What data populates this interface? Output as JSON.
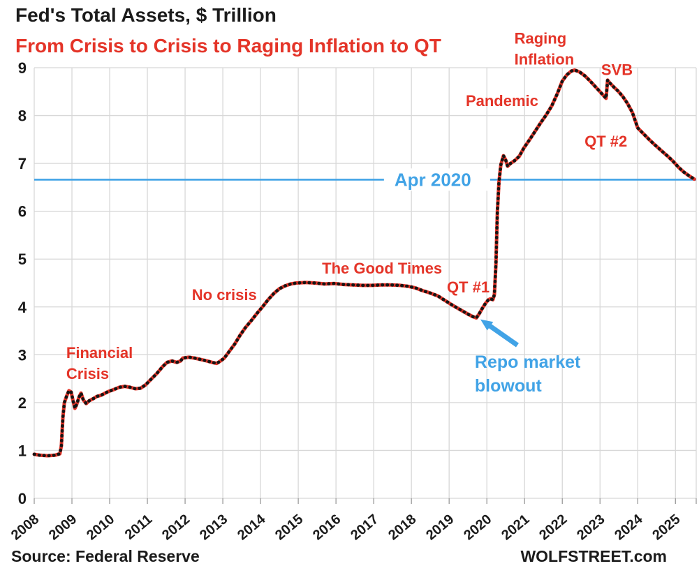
{
  "chart": {
    "title": "Fed's Total Assets, $ Trillion",
    "subtitle": "From Crisis to Crisis to Raging Inflation to QT"
  },
  "footer": {
    "source": "Source: Federal Reserve",
    "site": "WOLFSTREET.com"
  },
  "chart_data": {
    "type": "line",
    "title": "Fed's Total Assets, $ Trillion",
    "subtitle": "From Crisis to Crisis to Raging Inflation to QT",
    "xlabel": "",
    "ylabel": "$ Trillion",
    "xlim": [
      2008,
      2025.55
    ],
    "ylim": [
      0,
      9
    ],
    "grid": true,
    "x_ticks": [
      2008,
      2009,
      2010,
      2011,
      2012,
      2013,
      2014,
      2015,
      2016,
      2017,
      2018,
      2019,
      2020,
      2021,
      2022,
      2023,
      2024,
      2025
    ],
    "y_ticks": [
      0,
      1,
      2,
      3,
      4,
      5,
      6,
      7,
      8,
      9
    ],
    "colors": {
      "line_red": "#e43428",
      "marker_black": "#151515",
      "annotation_red": "#e43428",
      "annotation_blue": "#41a3e6",
      "grid": "#d8d8d8",
      "axis_text": "#1b1b1b"
    },
    "series": [
      {
        "name": "Fed total assets ($ trillion)",
        "points": [
          [
            2008.0,
            0.92
          ],
          [
            2008.15,
            0.9
          ],
          [
            2008.35,
            0.89
          ],
          [
            2008.55,
            0.9
          ],
          [
            2008.68,
            0.93
          ],
          [
            2008.72,
            1.1
          ],
          [
            2008.76,
            1.7
          ],
          [
            2008.8,
            2.0
          ],
          [
            2008.86,
            2.14
          ],
          [
            2008.92,
            2.25
          ],
          [
            2008.98,
            2.22
          ],
          [
            2009.03,
            2.04
          ],
          [
            2009.08,
            1.88
          ],
          [
            2009.13,
            1.97
          ],
          [
            2009.19,
            2.12
          ],
          [
            2009.24,
            2.2
          ],
          [
            2009.3,
            2.06
          ],
          [
            2009.38,
            1.98
          ],
          [
            2009.46,
            2.04
          ],
          [
            2009.56,
            2.08
          ],
          [
            2009.66,
            2.13
          ],
          [
            2009.76,
            2.15
          ],
          [
            2009.86,
            2.19
          ],
          [
            2009.96,
            2.23
          ],
          [
            2010.1,
            2.27
          ],
          [
            2010.25,
            2.32
          ],
          [
            2010.4,
            2.34
          ],
          [
            2010.55,
            2.32
          ],
          [
            2010.68,
            2.29
          ],
          [
            2010.82,
            2.3
          ],
          [
            2010.95,
            2.37
          ],
          [
            2011.1,
            2.49
          ],
          [
            2011.25,
            2.61
          ],
          [
            2011.4,
            2.75
          ],
          [
            2011.52,
            2.84
          ],
          [
            2011.65,
            2.87
          ],
          [
            2011.78,
            2.84
          ],
          [
            2011.88,
            2.87
          ],
          [
            2011.94,
            2.93
          ],
          [
            2012.1,
            2.95
          ],
          [
            2012.25,
            2.93
          ],
          [
            2012.42,
            2.9
          ],
          [
            2012.58,
            2.87
          ],
          [
            2012.72,
            2.84
          ],
          [
            2012.84,
            2.82
          ],
          [
            2012.94,
            2.87
          ],
          [
            2013.04,
            2.93
          ],
          [
            2013.18,
            3.08
          ],
          [
            2013.32,
            3.23
          ],
          [
            2013.46,
            3.41
          ],
          [
            2013.6,
            3.57
          ],
          [
            2013.75,
            3.71
          ],
          [
            2013.9,
            3.86
          ],
          [
            2014.05,
            4.0
          ],
          [
            2014.2,
            4.15
          ],
          [
            2014.35,
            4.28
          ],
          [
            2014.5,
            4.38
          ],
          [
            2014.65,
            4.44
          ],
          [
            2014.8,
            4.48
          ],
          [
            2014.95,
            4.5
          ],
          [
            2015.2,
            4.51
          ],
          [
            2015.45,
            4.5
          ],
          [
            2015.7,
            4.48
          ],
          [
            2015.95,
            4.49
          ],
          [
            2016.2,
            4.47
          ],
          [
            2016.45,
            4.46
          ],
          [
            2016.7,
            4.45
          ],
          [
            2016.95,
            4.45
          ],
          [
            2017.2,
            4.46
          ],
          [
            2017.45,
            4.46
          ],
          [
            2017.7,
            4.45
          ],
          [
            2017.92,
            4.43
          ],
          [
            2018.1,
            4.4
          ],
          [
            2018.3,
            4.34
          ],
          [
            2018.5,
            4.29
          ],
          [
            2018.7,
            4.23
          ],
          [
            2018.9,
            4.13
          ],
          [
            2019.1,
            4.03
          ],
          [
            2019.3,
            3.94
          ],
          [
            2019.5,
            3.85
          ],
          [
            2019.62,
            3.8
          ],
          [
            2019.72,
            3.77
          ],
          [
            2019.8,
            3.86
          ],
          [
            2019.88,
            3.97
          ],
          [
            2019.96,
            4.07
          ],
          [
            2020.04,
            4.15
          ],
          [
            2020.1,
            4.17
          ],
          [
            2020.16,
            4.15
          ],
          [
            2020.2,
            4.26
          ],
          [
            2020.24,
            4.9
          ],
          [
            2020.28,
            6.0
          ],
          [
            2020.32,
            6.6
          ],
          [
            2020.37,
            6.97
          ],
          [
            2020.44,
            7.16
          ],
          [
            2020.5,
            7.07
          ],
          [
            2020.55,
            6.94
          ],
          [
            2020.63,
            7.0
          ],
          [
            2020.74,
            7.06
          ],
          [
            2020.86,
            7.15
          ],
          [
            2020.98,
            7.32
          ],
          [
            2021.12,
            7.48
          ],
          [
            2021.27,
            7.66
          ],
          [
            2021.42,
            7.84
          ],
          [
            2021.57,
            8.01
          ],
          [
            2021.72,
            8.2
          ],
          [
            2021.87,
            8.46
          ],
          [
            2022.0,
            8.72
          ],
          [
            2022.12,
            8.85
          ],
          [
            2022.24,
            8.93
          ],
          [
            2022.33,
            8.95
          ],
          [
            2022.46,
            8.91
          ],
          [
            2022.6,
            8.83
          ],
          [
            2022.74,
            8.72
          ],
          [
            2022.88,
            8.6
          ],
          [
            2023.02,
            8.48
          ],
          [
            2023.16,
            8.36
          ],
          [
            2023.2,
            8.74
          ],
          [
            2023.26,
            8.68
          ],
          [
            2023.36,
            8.6
          ],
          [
            2023.48,
            8.51
          ],
          [
            2023.6,
            8.4
          ],
          [
            2023.73,
            8.25
          ],
          [
            2023.86,
            8.06
          ],
          [
            2024.0,
            7.74
          ],
          [
            2024.15,
            7.62
          ],
          [
            2024.3,
            7.5
          ],
          [
            2024.45,
            7.39
          ],
          [
            2024.62,
            7.27
          ],
          [
            2024.78,
            7.16
          ],
          [
            2024.93,
            7.05
          ],
          [
            2025.08,
            6.92
          ],
          [
            2025.22,
            6.82
          ],
          [
            2025.36,
            6.74
          ],
          [
            2025.5,
            6.67
          ]
        ]
      }
    ],
    "reference_line": {
      "label": "Apr 2020",
      "value": 6.66,
      "label_x": 2017.55,
      "label_baseline_value": 6.53
    },
    "annotations": [
      {
        "id": "financial-crisis",
        "lines": [
          "Financial",
          "Crisis"
        ],
        "x": 2008.85,
        "y": 2.93,
        "color": "red",
        "size": 22
      },
      {
        "id": "no-crisis",
        "lines": [
          "No crisis"
        ],
        "x": 2012.18,
        "y": 4.14,
        "color": "red",
        "size": 22
      },
      {
        "id": "the-good-times",
        "lines": [
          "The Good Times"
        ],
        "x": 2015.63,
        "y": 4.7,
        "color": "red",
        "size": 22
      },
      {
        "id": "qt-1",
        "lines": [
          "QT #1"
        ],
        "x": 2018.94,
        "y": 4.3,
        "color": "red",
        "size": 22
      },
      {
        "id": "pandemic",
        "lines": [
          "Pandemic"
        ],
        "x": 2019.44,
        "y": 8.2,
        "color": "red",
        "size": 22
      },
      {
        "id": "raging-inflation",
        "lines": [
          "Raging",
          "Inflation"
        ],
        "x": 2020.73,
        "y": 9.5,
        "color": "red",
        "size": 22
      },
      {
        "id": "svb",
        "lines": [
          "SVB"
        ],
        "x": 2023.03,
        "y": 8.85,
        "color": "red",
        "size": 22
      },
      {
        "id": "qt-2",
        "lines": [
          "QT #2"
        ],
        "x": 2022.59,
        "y": 7.35,
        "color": "red",
        "size": 22
      },
      {
        "id": "repo-market-blowout",
        "lines": [
          "Repo market",
          "blowout"
        ],
        "x": 2019.68,
        "y": 2.73,
        "color": "blue",
        "size": 25
      }
    ],
    "arrow": {
      "from": {
        "x": 2020.81,
        "y": 3.2
      },
      "to": {
        "x": 2019.83,
        "y": 3.74
      },
      "color": "blue"
    }
  }
}
